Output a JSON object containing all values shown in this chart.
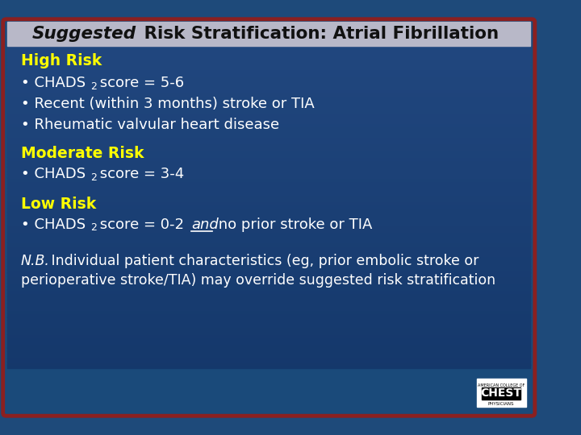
{
  "title_italic": "Suggested",
  "title_rest": " Risk Stratification: Atrial Fibrillation",
  "title_bg": "#b8b8c8",
  "outer_bg": "#1e4a7a",
  "border_color": "#8b2020",
  "heading_color": "#ffff00",
  "bullet_color": "#ffffff",
  "nb_color": "#ffffff",
  "title_color": "#111111",
  "nb_line1_italic": "N.B.",
  "nb_line1_rest": " Individual patient characteristics (eg, prior embolic stroke or",
  "nb_line2": "perioperative stroke/TIA) may override suggested risk stratification"
}
